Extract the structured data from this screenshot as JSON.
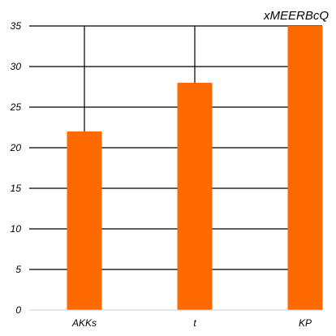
{
  "chart_data": {
    "type": "bar",
    "title": "xMEERBcQ",
    "categories": [
      "AKKs",
      "t",
      "KP"
    ],
    "values": [
      22,
      28,
      35
    ],
    "ylim": [
      0,
      35
    ],
    "yticks": [
      0,
      5,
      10,
      15,
      20,
      25,
      30,
      35
    ],
    "grid": true,
    "bar_color": "#ff6a00",
    "grid_color": "#000000",
    "axis_color": "#cccccc"
  }
}
